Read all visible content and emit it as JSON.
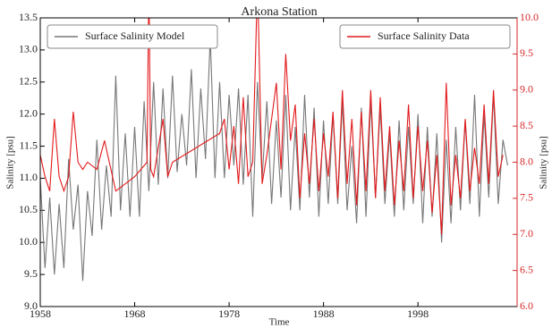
{
  "chart_data": {
    "type": "line",
    "title": "Arkona Station",
    "xlabel": "Time",
    "ylabel": "Salinity [psu]",
    "y2label": "Salinity [psu]",
    "xlim": [
      1958,
      2008.5
    ],
    "xticks": [
      1958,
      1968,
      1978,
      1988,
      1998
    ],
    "ylim": [
      9.0,
      13.5
    ],
    "yticks": [
      {
        "value": 9.0,
        "label": "9.0"
      },
      9.5,
      {
        "value": 10.0,
        "label": "10.0"
      },
      10.5,
      {
        "value": 11.0,
        "label": "11.0"
      },
      11.5,
      {
        "value": 12.0,
        "label": "12.0"
      },
      12.5,
      {
        "value": 13.0,
        "label": "13.0"
      },
      13.5
    ],
    "y2lim": [
      6.0,
      10.0
    ],
    "y2ticks": [
      {
        "value": 6.0,
        "label": "6.0"
      },
      6.5,
      {
        "value": 7.0,
        "label": "7.0"
      },
      7.5,
      {
        "value": 8.0,
        "label": "8.0"
      },
      8.5,
      {
        "value": 9.0,
        "label": "9.0"
      },
      9.5,
      {
        "value": 10.0,
        "label": "10.0"
      }
    ],
    "series": [
      {
        "name": "Surface Salinity Model",
        "color": "#777777",
        "axis": "y",
        "legend": "upper left",
        "x": [
          1958,
          1958.5,
          1959,
          1959.5,
          1960,
          1960.5,
          1961,
          1961.5,
          1962,
          1962.5,
          1963,
          1963.5,
          1964,
          1964.5,
          1965,
          1965.5,
          1966,
          1966.5,
          1967,
          1967.5,
          1968,
          1968.5,
          1969,
          1969.5,
          1970,
          1970.5,
          1971,
          1971.5,
          1972,
          1972.5,
          1973,
          1973.5,
          1974,
          1974.5,
          1975,
          1975.5,
          1976,
          1976.5,
          1977,
          1977.5,
          1978,
          1978.5,
          1979,
          1979.5,
          1980,
          1980.5,
          1981,
          1981.5,
          1982,
          1982.5,
          1983,
          1983.5,
          1984,
          1984.5,
          1985,
          1985.5,
          1986,
          1986.5,
          1987,
          1987.5,
          1988,
          1988.5,
          1989,
          1989.5,
          1990,
          1990.5,
          1991,
          1991.5,
          1992,
          1992.5,
          1993,
          1993.5,
          1994,
          1994.5,
          1995,
          1995.5,
          1996,
          1996.5,
          1997,
          1997.5,
          1998,
          1998.5,
          1999,
          1999.5,
          2000,
          2000.5,
          2001,
          2001.5,
          2002,
          2002.5,
          2003,
          2003.5,
          2004,
          2004.5,
          2005,
          2005.5,
          2006,
          2006.5,
          2007,
          2007.5
        ],
        "values": [
          11.0,
          9.6,
          10.7,
          9.5,
          10.6,
          9.6,
          11.3,
          10.2,
          10.9,
          9.4,
          10.8,
          10.1,
          11.6,
          10.2,
          11.2,
          10.4,
          12.6,
          10.5,
          11.7,
          10.4,
          11.8,
          10.4,
          12.2,
          10.8,
          12.5,
          10.9,
          12.4,
          11.0,
          12.6,
          11.1,
          12.0,
          11.2,
          12.7,
          11.0,
          12.4,
          11.3,
          13.2,
          11.0,
          12.5,
          11.0,
          12.3,
          11.2,
          12.4,
          10.9,
          12.3,
          10.4,
          12.5,
          11.0,
          12.2,
          10.6,
          11.9,
          10.7,
          12.3,
          10.5,
          11.8,
          10.5,
          12.3,
          10.7,
          12.1,
          10.4,
          11.9,
          10.6,
          12.0,
          10.6,
          12.2,
          10.5,
          11.5,
          10.3,
          12.1,
          10.4,
          12.2,
          10.7,
          12.1,
          10.6,
          11.7,
          10.4,
          11.9,
          10.5,
          11.8,
          10.6,
          12.0,
          10.3,
          11.8,
          10.4,
          11.7,
          10.0,
          11.6,
          10.3,
          11.8,
          10.5,
          11.9,
          10.6,
          12.3,
          10.4,
          12.0,
          10.7,
          12.3,
          10.6,
          11.6,
          11.2
        ]
      },
      {
        "name": "Surface Salinity Data",
        "color": "#e31a1c",
        "axis": "y2",
        "legend": "upper right",
        "x": [
          1958,
          1958.5,
          1959,
          1959.5,
          1960,
          1960.5,
          1961,
          1961.5,
          1962,
          1962.5,
          1963,
          1964,
          1964.8,
          1966,
          1968,
          1969.3,
          1969.5,
          1969.7,
          1970,
          1970.5,
          1971,
          1971.5,
          1972,
          1977,
          1977.5,
          1978,
          1978.5,
          1979,
          1979.5,
          1980,
          1980.5,
          1981,
          1981.5,
          1982,
          1983,
          1983.5,
          1984,
          1984.5,
          1985,
          1985.5,
          1986,
          1986.5,
          1987,
          1987.5,
          1988,
          1988.5,
          1989,
          1989.5,
          1990,
          1990.5,
          1991,
          1991.5,
          1992,
          1992.5,
          1993,
          1993.5,
          1994,
          1994.5,
          1995,
          1995.5,
          1996,
          1996.5,
          1997,
          1997.5,
          1998,
          1998.5,
          1999,
          1999.5,
          2000,
          2000.5,
          2001,
          2001.5,
          2002,
          2002.5,
          2003,
          2003.5,
          2004,
          2004.5,
          2005,
          2005.5,
          2006,
          2006.5,
          2007
        ],
        "values": [
          8.1,
          7.8,
          7.6,
          8.6,
          7.8,
          7.6,
          7.8,
          8.7,
          8.0,
          7.9,
          8.0,
          7.9,
          8.3,
          7.6,
          7.8,
          8.0,
          10.5,
          7.9,
          7.8,
          8.2,
          8.6,
          7.8,
          8.0,
          8.4,
          8.6,
          7.9,
          8.5,
          7.7,
          8.9,
          7.8,
          8.0,
          10.5,
          7.7,
          8.1,
          9.1,
          7.9,
          9.5,
          8.3,
          8.8,
          7.5,
          8.4,
          7.7,
          8.6,
          7.6,
          8.4,
          7.8,
          8.7,
          7.5,
          9.0,
          7.7,
          8.6,
          7.4,
          8.7,
          7.6,
          9.0,
          7.5,
          8.9,
          7.6,
          8.5,
          7.4,
          8.3,
          7.6,
          8.8,
          7.5,
          8.5,
          7.6,
          8.3,
          7.3,
          8.1,
          7.0,
          9.1,
          7.4,
          8.1,
          7.5,
          8.6,
          7.6,
          8.2,
          7.7,
          8.8,
          7.7,
          9.0,
          7.8,
          8.1
        ]
      }
    ]
  }
}
